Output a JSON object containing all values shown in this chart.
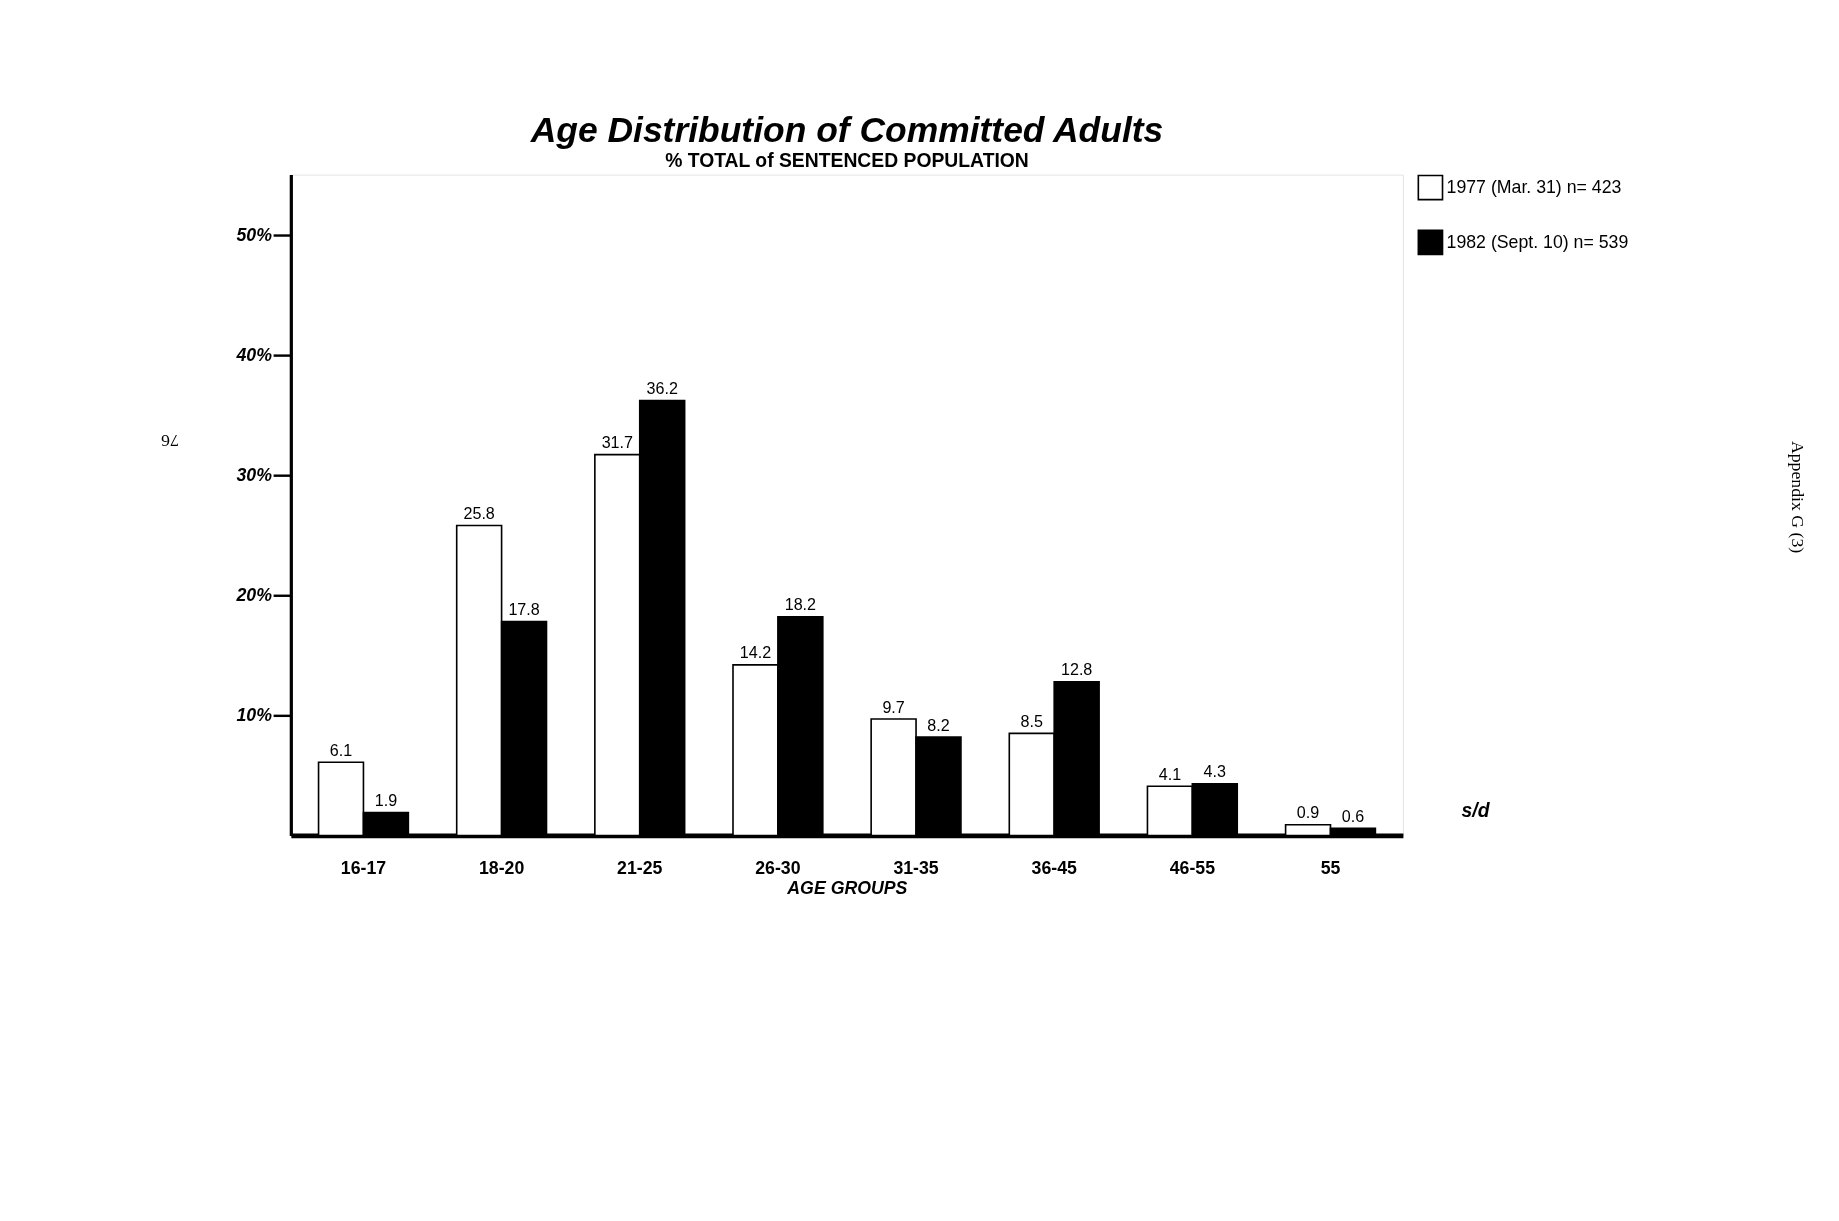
{
  "chart_data": {
    "type": "bar",
    "title": "Age Distribution of Committed Adults",
    "subtitle": "% TOTAL of SENTENCED POPULATION",
    "xlabel": "AGE GROUPS",
    "categories": [
      "16-17",
      "18-20",
      "21-25",
      "26-30",
      "31-35",
      "36-45",
      "46-55",
      "55"
    ],
    "series": [
      {
        "name": "1977 (Mar. 31)   n= 423",
        "color": "#ffffff",
        "values": [
          6.1,
          25.8,
          31.7,
          14.2,
          9.7,
          8.5,
          4.1,
          0.9
        ]
      },
      {
        "name": "1982 (Sept. 10)   n= 539",
        "color": "#000000",
        "values": [
          1.9,
          17.8,
          36.2,
          18.2,
          8.2,
          12.8,
          4.3,
          0.6
        ]
      }
    ],
    "ylim": [
      0,
      55
    ],
    "yticks": [
      {
        "value": 10,
        "label": "10%"
      },
      {
        "value": 20,
        "label": "20%"
      },
      {
        "value": 30,
        "label": "30%"
      },
      {
        "value": 40,
        "label": "40%"
      },
      {
        "value": 50,
        "label": "50%"
      }
    ],
    "data_labels": true,
    "legend": "right",
    "grid": false,
    "annotations": [
      "s/d",
      "76",
      "Appendix G (3)"
    ]
  }
}
